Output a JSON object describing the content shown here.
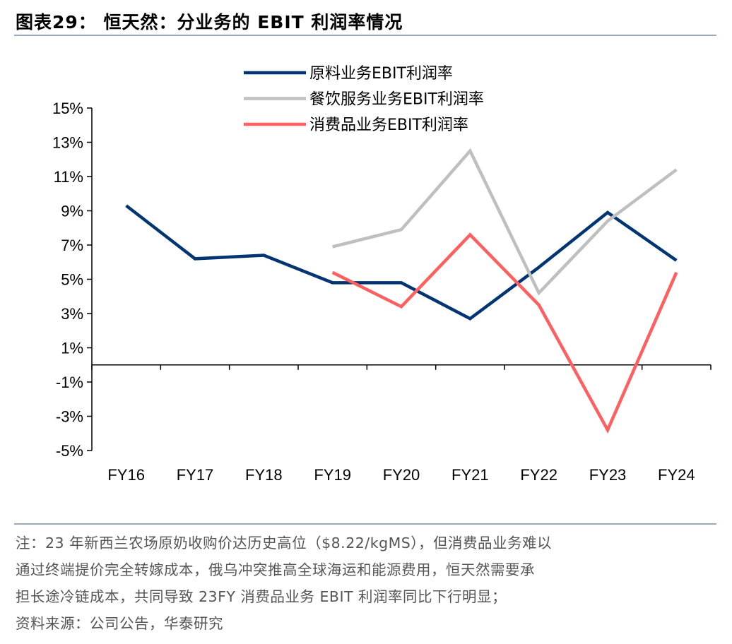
{
  "title": "图表29： 恒天然：分业务的 EBIT 利润率情况",
  "notes": [
    "注：23 年新西兰农场原奶收购价达历史高位（$8.22/kgMS），但消费品业务难以",
    "通过终端提价完全转嫁成本，俄乌冲突推高全球海运和能源费用，恒天然需要承",
    "担长途冷链成本，共同导致 23FY 消费品业务 EBIT 利润率同比下行明显；",
    "资料来源：公司公告，华泰研究"
  ],
  "chart_data": {
    "type": "line",
    "categories": [
      "FY16",
      "FY17",
      "FY18",
      "FY19",
      "FY20",
      "FY21",
      "FY22",
      "FY23",
      "FY24"
    ],
    "ylim": [
      -5,
      15
    ],
    "yticks": [
      15,
      13,
      11,
      9,
      7,
      5,
      3,
      1,
      -1,
      -3,
      -5
    ],
    "ytick_labels": [
      "15%",
      "13%",
      "11%",
      "9%",
      "7%",
      "5%",
      "3%",
      "1%",
      "-1%",
      "-3%",
      "-5%"
    ],
    "legend_position": "top-center",
    "series": [
      {
        "name": "原料业务EBIT利润率",
        "color": "#003473",
        "values": [
          9.3,
          6.2,
          6.4,
          4.8,
          4.8,
          2.7,
          5.7,
          8.9,
          6.1
        ]
      },
      {
        "name": "餐饮服务业务EBIT利润率",
        "color": "#bfbfbf",
        "values": [
          null,
          null,
          null,
          6.9,
          7.9,
          12.5,
          4.2,
          8.4,
          11.4
        ]
      },
      {
        "name": "消费品业务EBIT利润率",
        "color": "#ff5f5f",
        "values": [
          null,
          null,
          null,
          5.4,
          3.4,
          7.6,
          3.5,
          -3.8,
          5.4
        ]
      }
    ]
  }
}
